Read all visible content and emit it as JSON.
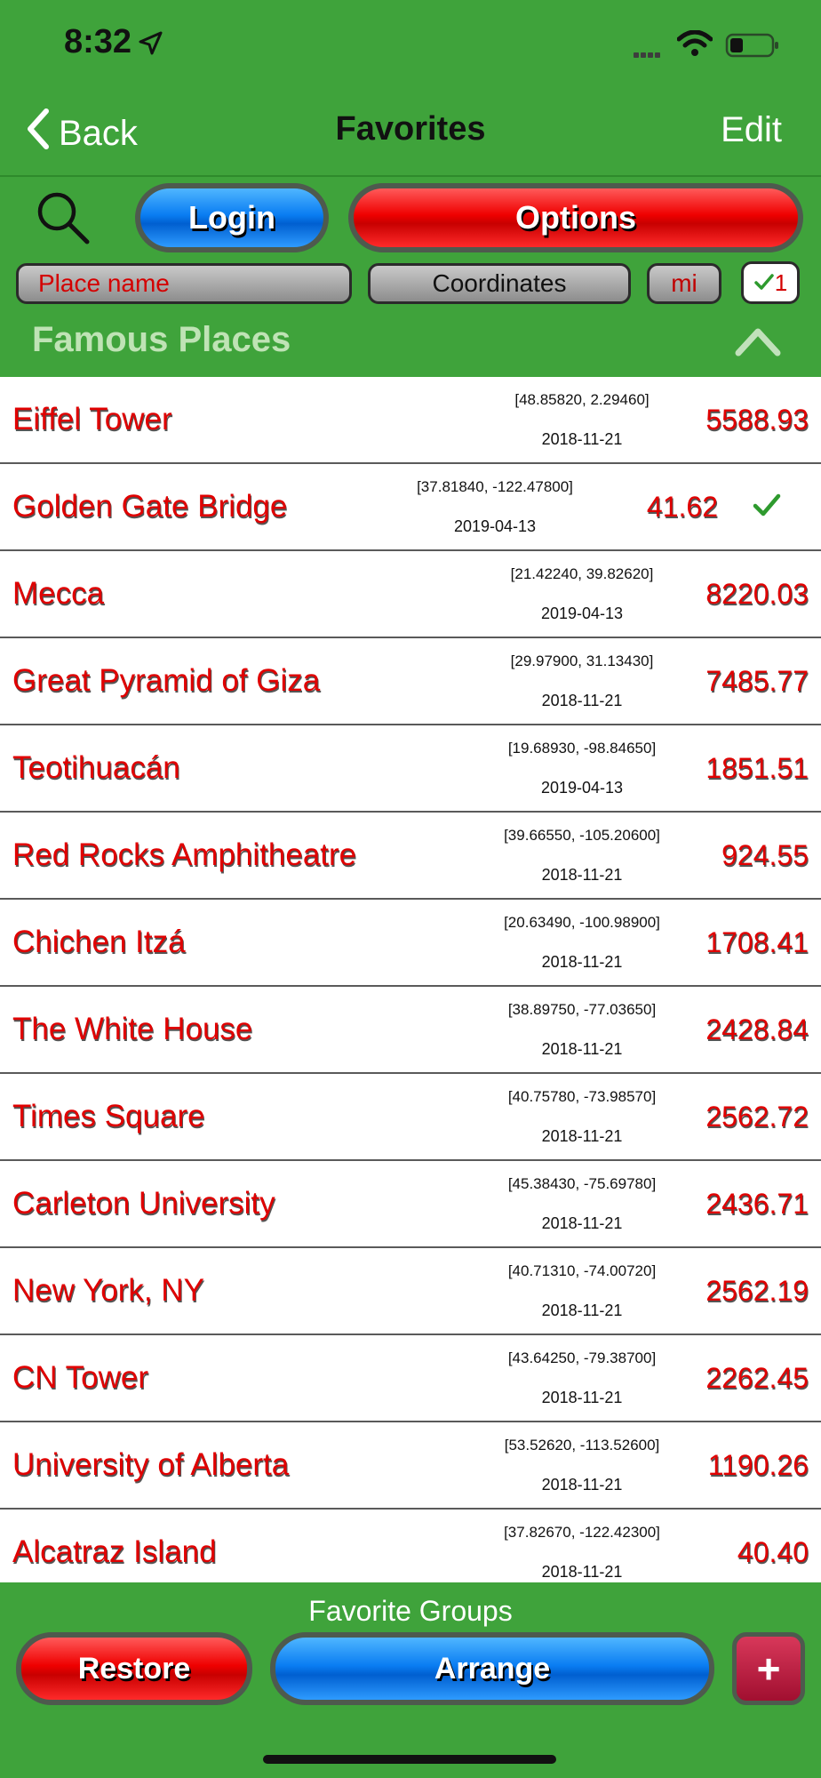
{
  "status_bar": {
    "time": "8:32"
  },
  "nav": {
    "back_label": "Back",
    "title": "Favorites",
    "edit_label": "Edit"
  },
  "toolbar": {
    "login_label": "Login",
    "options_label": "Options"
  },
  "filters": {
    "place_placeholder": "Place name",
    "coords_label": "Coordinates",
    "units_label": "mi",
    "selected_count": "1"
  },
  "section": {
    "title": "Famous Places"
  },
  "places": [
    {
      "name": "Eiffel Tower",
      "coords": "[48.85820, 2.29460]",
      "date": "2018-11-21",
      "distance": "5588.93",
      "checked": false
    },
    {
      "name": "Golden Gate Bridge",
      "coords": "[37.81840, -122.47800]",
      "date": "2019-04-13",
      "distance": "41.62",
      "checked": true
    },
    {
      "name": "Mecca",
      "coords": "[21.42240, 39.82620]",
      "date": "2019-04-13",
      "distance": "8220.03",
      "checked": false
    },
    {
      "name": "Great Pyramid of Giza",
      "coords": "[29.97900, 31.13430]",
      "date": "2018-11-21",
      "distance": "7485.77",
      "checked": false
    },
    {
      "name": "Teotihuacán",
      "coords": "[19.68930, -98.84650]",
      "date": "2019-04-13",
      "distance": "1851.51",
      "checked": false
    },
    {
      "name": "Red Rocks Amphitheatre",
      "coords": "[39.66550, -105.20600]",
      "date": "2018-11-21",
      "distance": "924.55",
      "checked": false
    },
    {
      "name": "Chichen Itzá",
      "coords": "[20.63490, -100.98900]",
      "date": "2018-11-21",
      "distance": "1708.41",
      "checked": false
    },
    {
      "name": "The White House",
      "coords": "[38.89750, -77.03650]",
      "date": "2018-11-21",
      "distance": "2428.84",
      "checked": false
    },
    {
      "name": "Times Square",
      "coords": "[40.75780, -73.98570]",
      "date": "2018-11-21",
      "distance": "2562.72",
      "checked": false
    },
    {
      "name": "Carleton University",
      "coords": "[45.38430, -75.69780]",
      "date": "2018-11-21",
      "distance": "2436.71",
      "checked": false
    },
    {
      "name": "New York, NY",
      "coords": "[40.71310, -74.00720]",
      "date": "2018-11-21",
      "distance": "2562.19",
      "checked": false
    },
    {
      "name": "CN Tower",
      "coords": "[43.64250, -79.38700]",
      "date": "2018-11-21",
      "distance": "2262.45",
      "checked": false
    },
    {
      "name": "University of Alberta",
      "coords": "[53.52620, -113.52600]",
      "date": "2018-11-21",
      "distance": "1190.26",
      "checked": false
    },
    {
      "name": "Alcatraz Island",
      "coords": "[37.82670, -122.42300]",
      "date": "2018-11-21",
      "distance": "40.40",
      "checked": false
    }
  ],
  "bottom_bar": {
    "title": "Favorite Groups",
    "restore_label": "Restore",
    "arrange_label": "Arrange",
    "add_label": "+"
  },
  "colors": {
    "header_green": "#3fa33b",
    "place_red": "#e00000",
    "check_green": "#2e9a2e",
    "login_blue": "#0a7df2",
    "options_red": "#ef0000"
  },
  "icons": {
    "back": "chevron-left-icon",
    "search": "search-icon",
    "collapse": "chevron-up-icon",
    "check": "checkmark-icon",
    "location": "location-arrow-icon",
    "wifi": "wifi-icon",
    "battery": "battery-icon"
  }
}
